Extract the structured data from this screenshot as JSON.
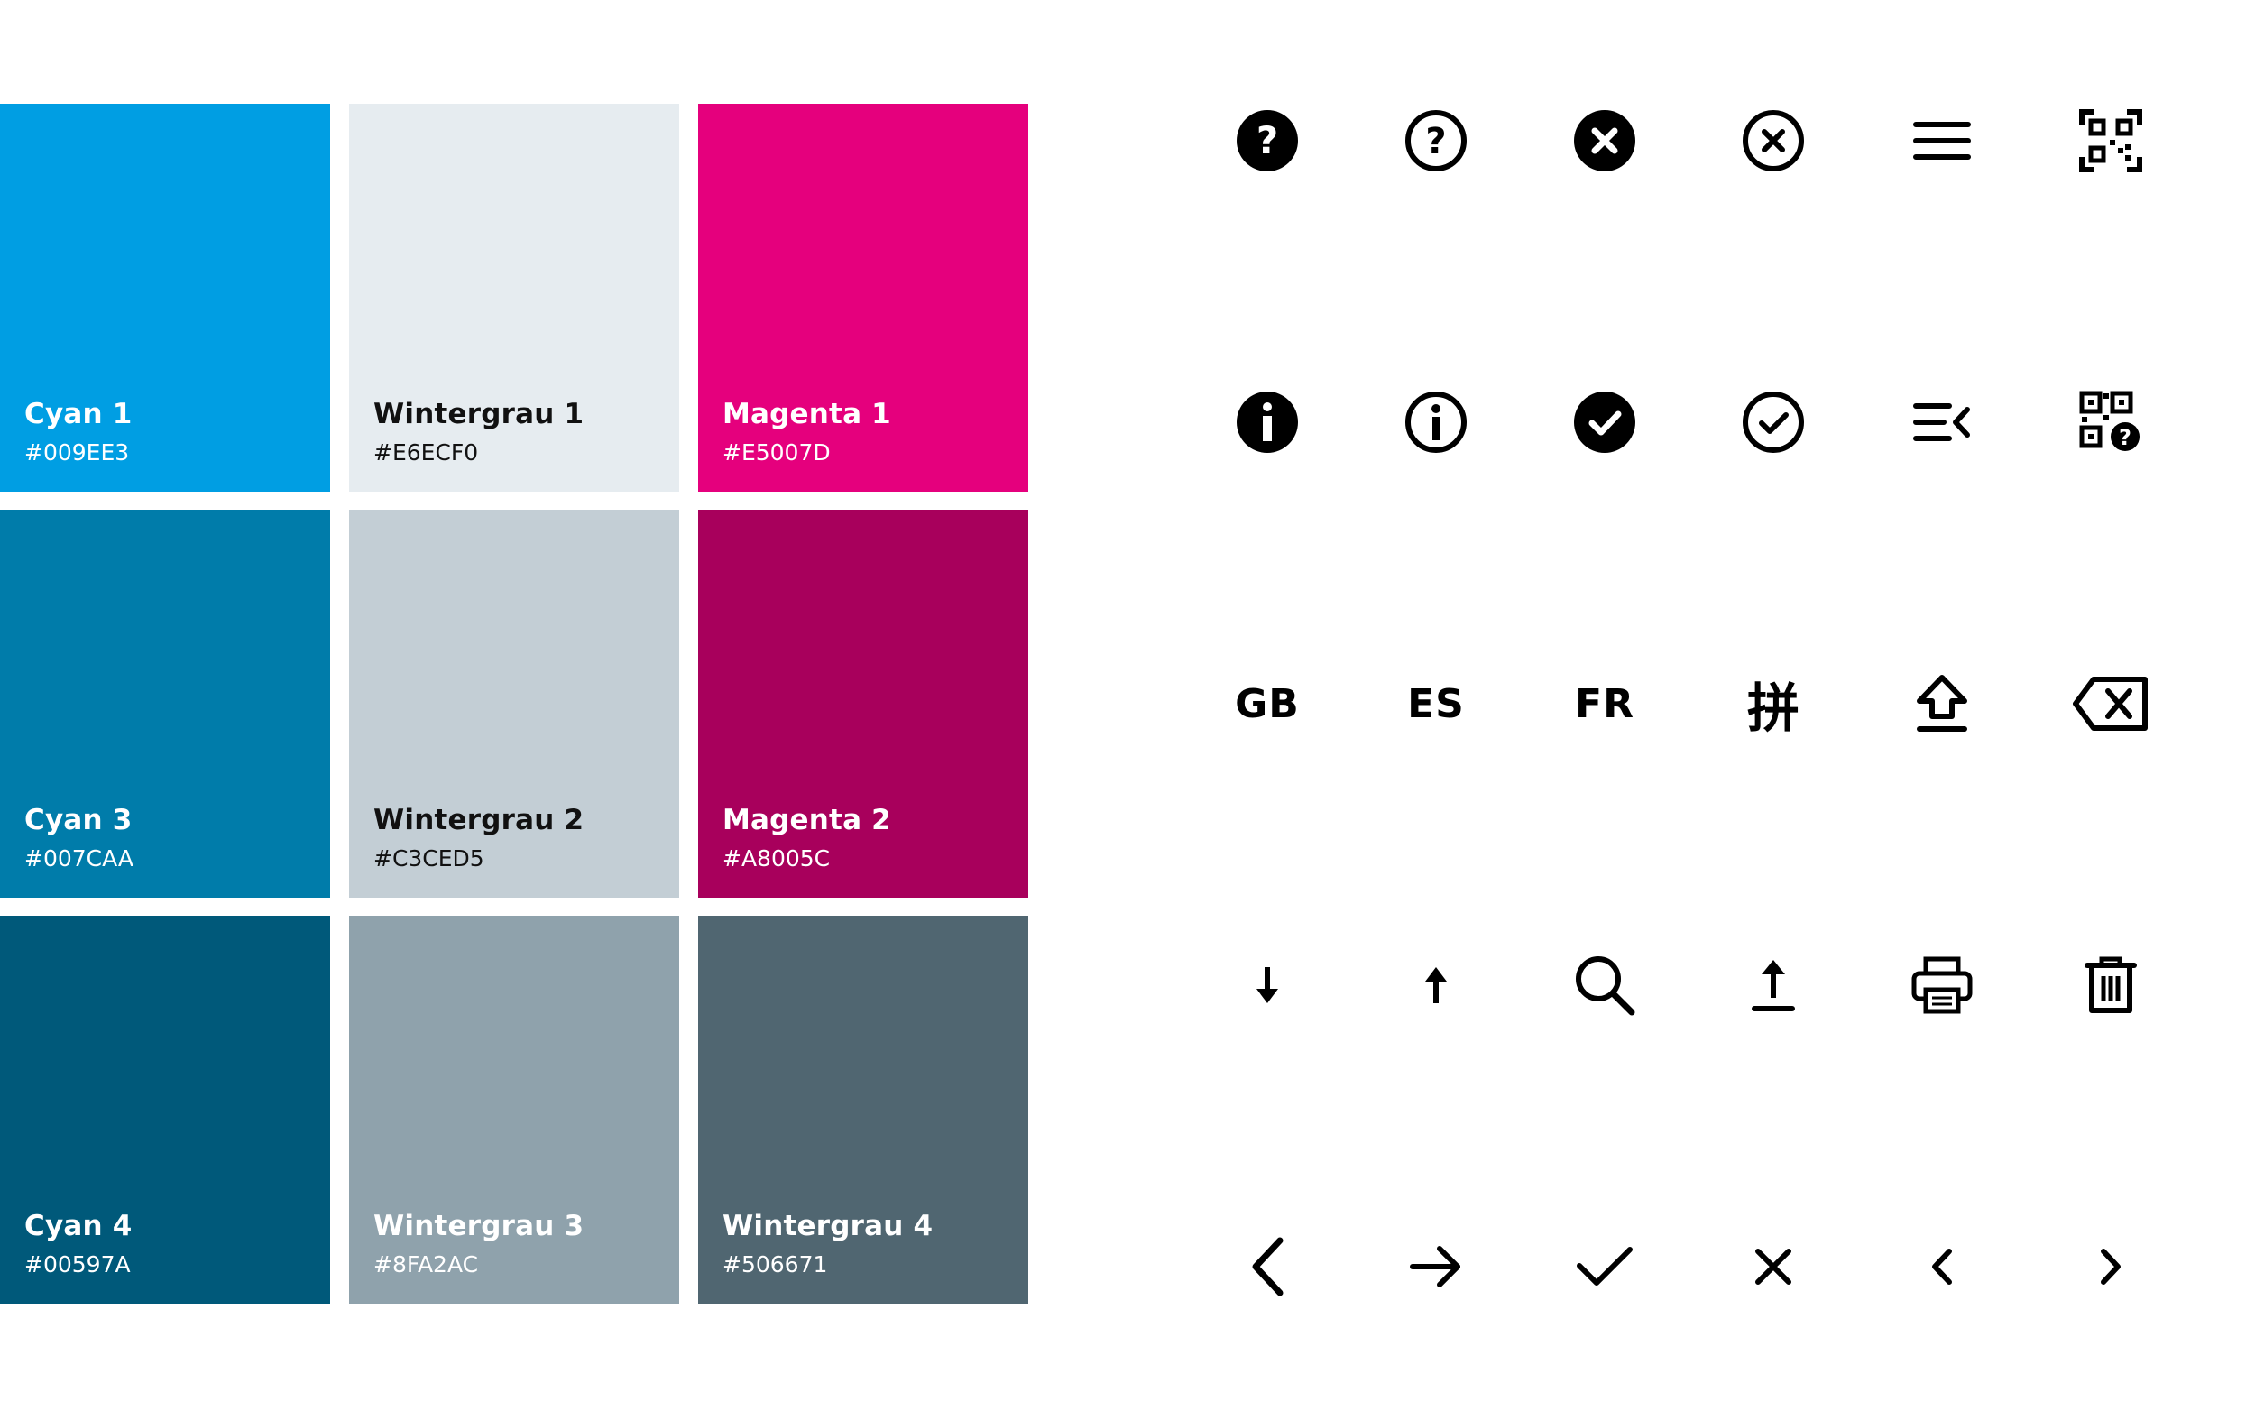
{
  "palette": {
    "swatches": [
      {
        "name": "Cyan 1",
        "hex": "#009EE3",
        "text_color": "#ffffff"
      },
      {
        "name": "Wintergrau 1",
        "hex": "#E6ECF0",
        "text_color": "#111111"
      },
      {
        "name": "Magenta 1",
        "hex": "#E5007D",
        "text_color": "#ffffff"
      },
      {
        "name": "Cyan 3",
        "hex": "#007CAA",
        "text_color": "#ffffff"
      },
      {
        "name": "Wintergrau 2",
        "hex": "#C3CED5",
        "text_color": "#111111"
      },
      {
        "name": "Magenta 2",
        "hex": "#A8005C",
        "text_color": "#ffffff"
      },
      {
        "name": "Cyan 4",
        "hex": "#00597A",
        "text_color": "#ffffff"
      },
      {
        "name": "Wintergrau 3",
        "hex": "#8FA2AC",
        "text_color": "#ffffff"
      },
      {
        "name": "Wintergrau 4",
        "hex": "#506671",
        "text_color": "#ffffff"
      }
    ]
  },
  "icons": {
    "row1": [
      "help-filled-icon",
      "help-outline-icon",
      "close-filled-icon",
      "close-outline-icon",
      "menu-icon",
      "qr-code-icon"
    ],
    "row2": [
      "info-filled-icon",
      "info-outline-icon",
      "check-filled-icon",
      "check-outline-icon",
      "menu-collapse-icon",
      "qr-code-help-icon"
    ],
    "row3": {
      "lang_gb": "GB",
      "lang_es": "ES",
      "lang_fr": "FR",
      "lang_pinyin": "拼",
      "others": [
        "shift-icon",
        "backspace-icon"
      ]
    },
    "row4": [
      "arrow-down-icon",
      "arrow-up-icon",
      "search-icon",
      "upload-icon",
      "print-icon",
      "trash-icon"
    ],
    "row5": [
      "chevron-left-large-icon",
      "arrow-right-icon",
      "checkmark-icon",
      "close-icon",
      "chevron-left-small-icon",
      "chevron-right-small-icon"
    ]
  }
}
